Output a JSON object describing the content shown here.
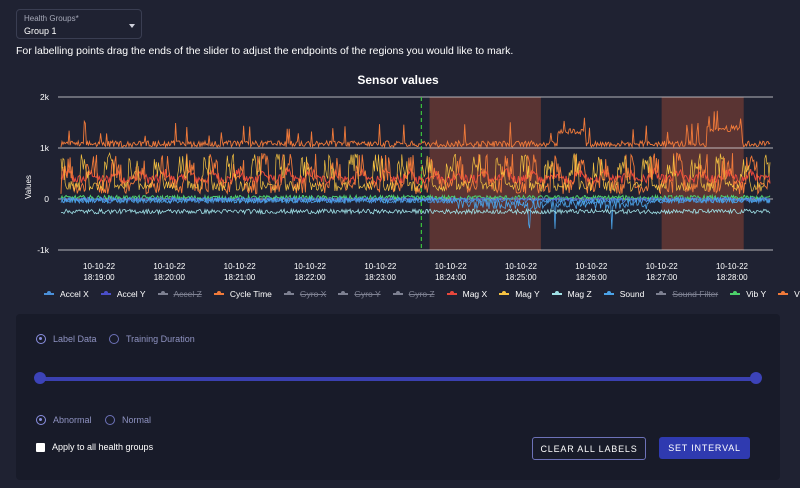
{
  "health_groups": {
    "label": "Health Groups*",
    "value": "Group 1"
  },
  "instructions": "For labelling points drag the ends of the slider to adjust the endpoints of the regions you would like to mark.",
  "chart_data": {
    "type": "line",
    "title": "Sensor values",
    "ylabel": "Values",
    "y_ticks": [
      "2k",
      "1k",
      "0",
      "-1k"
    ],
    "ylim": [
      -1000,
      2000
    ],
    "x_ticks": [
      [
        "10-10-22",
        "18:19:00"
      ],
      [
        "10-10-22",
        "18:20:00"
      ],
      [
        "10-10-22",
        "18:21:00"
      ],
      [
        "10-10-22",
        "18:22:00"
      ],
      [
        "10-10-22",
        "18:23:00"
      ],
      [
        "10-10-22",
        "18:24:00"
      ],
      [
        "10-10-22",
        "18:25:00"
      ],
      [
        "10-10-22",
        "18:26:00"
      ],
      [
        "10-10-22",
        "18:27:00"
      ],
      [
        "10-10-22",
        "18:28:00"
      ]
    ],
    "marker_time": "18:23:35",
    "highlighted_regions": [
      {
        "start": "18:23:42",
        "end": "18:25:17"
      },
      {
        "start": "18:27:00",
        "end": "18:28:10"
      }
    ],
    "series": [
      {
        "name": "Accel X",
        "color": "#4a90d9",
        "visible": true,
        "approx_level": 0
      },
      {
        "name": "Accel Y",
        "color": "#4b4fc9",
        "visible": true,
        "approx_level": 0
      },
      {
        "name": "Accel Z",
        "color": "#7d8091",
        "visible": false
      },
      {
        "name": "Cycle Time",
        "color": "#f07a3a",
        "visible": true,
        "approx_level": 1050
      },
      {
        "name": "Gyro X",
        "color": "#7d8091",
        "visible": false
      },
      {
        "name": "Gyro Y",
        "color": "#7d8091",
        "visible": false
      },
      {
        "name": "Gyro Z",
        "color": "#7d8091",
        "visible": false
      },
      {
        "name": "Mag X",
        "color": "#e8473c",
        "visible": true,
        "approx_level": 350
      },
      {
        "name": "Mag Y",
        "color": "#f5c242",
        "visible": true,
        "approx_level": 500
      },
      {
        "name": "Mag Z",
        "color": "#9fe0e6",
        "visible": true,
        "approx_level": -250
      },
      {
        "name": "Sound",
        "color": "#4ba3e8",
        "visible": true,
        "approx_level": -50
      },
      {
        "name": "Sound Filter",
        "color": "#7d8091",
        "visible": false
      },
      {
        "name": "Vib Y",
        "color": "#4cd26b",
        "visible": true,
        "approx_level": 0
      },
      {
        "name": "Vib Z",
        "color": "#f07a3a",
        "visible": true,
        "approx_level": 500
      }
    ]
  },
  "panel": {
    "mode_options": [
      "Label Data",
      "Training Duration"
    ],
    "mode_selected": "Label Data",
    "label_options": [
      "Abnormal",
      "Normal"
    ],
    "label_selected": "Abnormal",
    "slider_range_fraction": [
      0,
      1
    ],
    "apply_all": {
      "label": "Apply to all health groups",
      "checked": false
    },
    "clear_button": "CLEAR ALL LABELS",
    "set_button": "SET INTERVAL"
  }
}
